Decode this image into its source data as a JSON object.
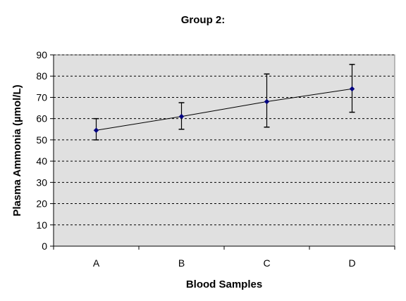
{
  "chart_data": {
    "type": "line",
    "title": "Group 2:",
    "xlabel": "Blood Samples",
    "ylabel": "Plasma Ammonia (µmol/L)",
    "categories": [
      "A",
      "B",
      "C",
      "D"
    ],
    "series": [
      {
        "values": [
          54.5,
          61,
          68,
          74
        ],
        "error_low": [
          50,
          55,
          56,
          63
        ],
        "error_high": [
          60,
          67.5,
          81,
          85.5
        ]
      }
    ],
    "ylim": [
      0,
      90
    ],
    "yticks": [
      "0",
      "10",
      "20",
      "30",
      "40",
      "50",
      "60",
      "70",
      "80",
      "90"
    ],
    "grid": true,
    "legend": "none",
    "colors": {
      "plot_bg": "#e0e0e0",
      "line": "#000000",
      "marker": "#000080",
      "grid": "#000000"
    }
  }
}
